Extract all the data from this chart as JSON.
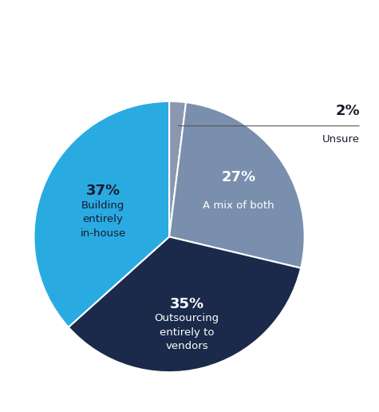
{
  "slices": [
    {
      "label": "Building\nentirely\nin-house",
      "pct_label": "37%",
      "value": 37,
      "color": "#29ABE2",
      "text_color": "#1a1a2e"
    },
    {
      "label": "Outsourcing\nentirely to\nvendors",
      "pct_label": "35%",
      "value": 35,
      "color": "#1B2A4A",
      "text_color": "#ffffff"
    },
    {
      "label": "A mix of both",
      "pct_label": "27%",
      "value": 27,
      "color": "#7A8FAD",
      "text_color": "#ffffff"
    },
    {
      "label": "Unsure",
      "pct_label": "2%",
      "value": 2,
      "color": "#8A97AE",
      "text_color": "#1a1a2e"
    }
  ],
  "background_color": "#ffffff",
  "figsize": [
    4.75,
    5.16
  ],
  "dpi": 100
}
